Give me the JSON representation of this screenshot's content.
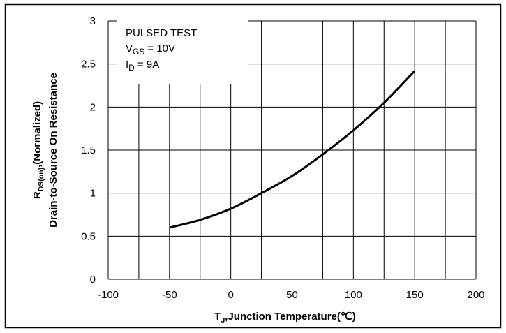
{
  "chart_data": {
    "type": "line",
    "xlabel": {
      "main": "T",
      "sub": "J",
      "rest": ",Junction Temperature(℃)"
    },
    "ylabel": [
      {
        "main": "R",
        "sub": "DS(on)",
        "rest": ",(Normalized)"
      },
      "Drain-to-Source On Resistance"
    ],
    "annotation": [
      "PULSED TEST",
      {
        "main": "V",
        "sub": "GS",
        "rest": " = 10V"
      },
      {
        "main": "I",
        "sub": "D",
        "rest": " = 9A"
      }
    ],
    "series": [
      {
        "color": "#000000",
        "x": [
          -50,
          -25,
          0,
          25,
          50,
          75,
          100,
          125,
          150
        ],
        "values": [
          0.6,
          0.69,
          0.82,
          1.0,
          1.2,
          1.45,
          1.73,
          2.05,
          2.42
        ]
      }
    ],
    "xlim": [
      -100,
      200
    ],
    "xticks": [
      -100,
      -50,
      0,
      50,
      100,
      150,
      200
    ],
    "xgrid": [
      -100,
      -75,
      -50,
      -25,
      0,
      25,
      50,
      75,
      100,
      125,
      150,
      175,
      200
    ],
    "ylim": [
      0,
      3
    ],
    "yticks": [
      0,
      0.5,
      1,
      1.5,
      2,
      2.5,
      3
    ],
    "grid": true
  }
}
